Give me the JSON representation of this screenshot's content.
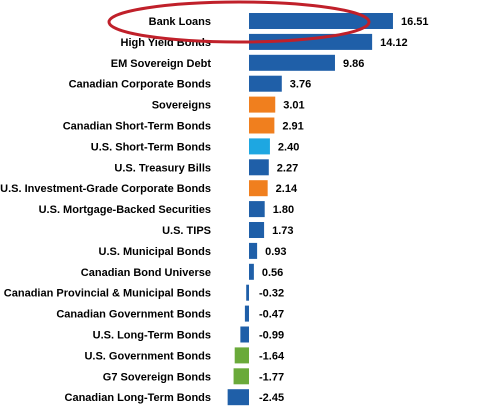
{
  "chart_data": {
    "type": "bar",
    "orientation": "horizontal",
    "title": "",
    "xlabel": "",
    "ylabel": "",
    "grid": false,
    "legend": "none",
    "xlim": [
      -2.6,
      17
    ],
    "categories": [
      "Bank Loans",
      "High Yield Bonds",
      "EM Sovereign Debt",
      "Canadian Corporate Bonds",
      "Sovereigns",
      "Canadian Short-Term Bonds",
      "U.S. Short-Term Bonds",
      "U.S. Treasury Bills",
      "U.S. Investment-Grade Corporate Bonds",
      "U.S. Mortgage-Backed Securities",
      "U.S. TIPS",
      "U.S. Municipal Bonds",
      "Canadian Bond Universe",
      "Canadian Provincial & Municipal Bonds",
      "Canadian Government Bonds",
      "U.S. Long-Term Bonds",
      "U.S. Government Bonds",
      "G7 Sovereign Bonds",
      "Canadian Long-Term Bonds"
    ],
    "values": [
      16.51,
      14.12,
      9.86,
      3.76,
      3.01,
      2.91,
      2.4,
      2.27,
      2.14,
      1.8,
      1.73,
      0.93,
      0.56,
      -0.32,
      -0.47,
      -0.99,
      -1.64,
      -1.77,
      -2.45
    ],
    "value_labels": [
      "16.51",
      "14.12",
      "9.86",
      "3.76",
      "3.01",
      "2.91",
      "2.40",
      "2.27",
      "2.14",
      "1.80",
      "1.73",
      "0.93",
      "0.56",
      "-0.32",
      "-0.47",
      "-0.99",
      "-1.64",
      "-1.77",
      "-2.45"
    ],
    "bar_colors": [
      "#1f5fa8",
      "#1f5fa8",
      "#1f5fa8",
      "#1f5fa8",
      "#f07f1e",
      "#f07f1e",
      "#1ea7e1",
      "#1f5fa8",
      "#f07f1e",
      "#1f5fa8",
      "#1f5fa8",
      "#1f5fa8",
      "#1f5fa8",
      "#1f5fa8",
      "#1f5fa8",
      "#1f5fa8",
      "#6aaa3a",
      "#6aaa3a",
      "#1f5fa8"
    ],
    "highlight": {
      "category": "Bank Loans",
      "shape": "ellipse",
      "color": "#c0202a"
    }
  }
}
